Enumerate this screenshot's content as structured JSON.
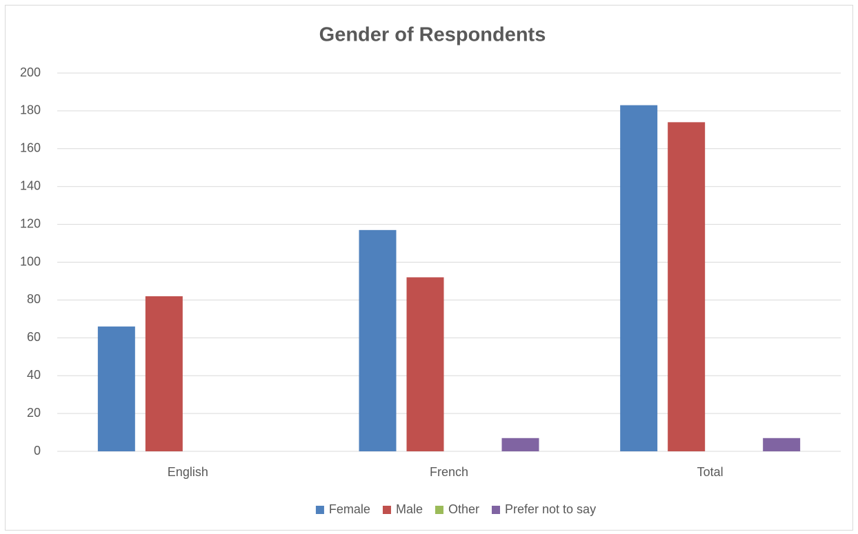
{
  "chart_data": {
    "type": "bar",
    "title": "Gender of Respondents",
    "categories": [
      "English",
      "French",
      "Total"
    ],
    "series": [
      {
        "name": "Female",
        "color": "#4f81bd",
        "values": [
          66,
          117,
          183
        ]
      },
      {
        "name": "Male",
        "color": "#c0504d",
        "values": [
          82,
          92,
          174
        ]
      },
      {
        "name": "Other",
        "color": "#9bbb59",
        "values": [
          0,
          0,
          0
        ]
      },
      {
        "name": "Prefer not to say",
        "color": "#8064a2",
        "values": [
          0,
          7,
          7
        ]
      }
    ],
    "ylim": [
      0,
      200
    ],
    "yticks": [
      0,
      20,
      40,
      60,
      80,
      100,
      120,
      140,
      160,
      180,
      200
    ],
    "grid": true,
    "legend": "bottom"
  }
}
